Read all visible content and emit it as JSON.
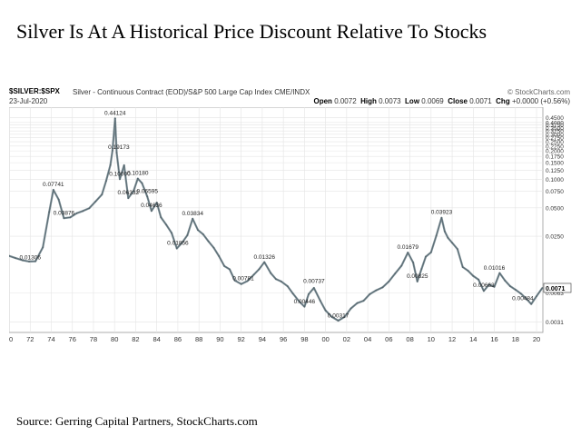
{
  "page": {
    "title": "Silver Is At A Historical Price Discount Relative To Stocks",
    "source": "Source: Gerring Capital Partners, StockCharts.com"
  },
  "header": {
    "symbol": "$SILVER:$SPX",
    "description": "Silver - Continuous Contract (EOD)/S&P 500 Large Cap Index",
    "exchange": "CME/INDX",
    "watermark": "© StockCharts.com",
    "date": "23-Jul-2020",
    "quote": {
      "open_label": "Open",
      "open": "0.0072",
      "high_label": "High",
      "high": "0.0073",
      "low_label": "Low",
      "low": "0.0069",
      "close_label": "Close",
      "close": "0.0071",
      "chg_label": "Chg",
      "chg": "+0.0000 (+0.56%)"
    }
  },
  "chart_data": {
    "type": "line",
    "title": "$SILVER:$SPX",
    "xlabel": "",
    "ylabel": "",
    "y_scale": "log",
    "xlim": [
      1970,
      2020.6
    ],
    "ylim": [
      0.0024,
      0.58
    ],
    "x_tick_labels": [
      "70",
      "72",
      "74",
      "76",
      "78",
      "80",
      "82",
      "84",
      "86",
      "88",
      "90",
      "92",
      "94",
      "96",
      "98",
      "00",
      "02",
      "04",
      "06",
      "08",
      "10",
      "12",
      "14",
      "16",
      "18",
      "20"
    ],
    "x_tick_years": [
      1970,
      1972,
      1974,
      1976,
      1978,
      1980,
      1982,
      1984,
      1986,
      1988,
      1990,
      1992,
      1994,
      1996,
      1998,
      2000,
      2002,
      2004,
      2006,
      2008,
      2010,
      2012,
      2014,
      2016,
      2018,
      2020
    ],
    "y_ticks": [
      {
        "value": 0.45,
        "label": "0.4500"
      },
      {
        "value": 0.4,
        "label": "0.4000"
      },
      {
        "value": 0.375,
        "label": "0.3750"
      },
      {
        "value": 0.35,
        "label": "0.3500"
      },
      {
        "value": 0.325,
        "label": "0.3250"
      },
      {
        "value": 0.3,
        "label": "0.3000"
      },
      {
        "value": 0.275,
        "label": "0.2750"
      },
      {
        "value": 0.25,
        "label": "0.2500"
      },
      {
        "value": 0.225,
        "label": "0.2250"
      },
      {
        "value": 0.2,
        "label": "0.2000"
      },
      {
        "value": 0.175,
        "label": "0.1750"
      },
      {
        "value": 0.15,
        "label": "0.1500"
      },
      {
        "value": 0.125,
        "label": "0.1250"
      },
      {
        "value": 0.1,
        "label": "0.1000"
      },
      {
        "value": 0.075,
        "label": "0.0750"
      },
      {
        "value": 0.05,
        "label": "0.0500"
      },
      {
        "value": 0.025,
        "label": "0.0250"
      },
      {
        "value": 0.0063,
        "label": "0.0063"
      },
      {
        "value": 0.0031,
        "label": "0.0031"
      }
    ],
    "last_value": {
      "value": 0.0071,
      "label": "0.0071"
    },
    "grid": true,
    "legend": "none",
    "series": [
      {
        "x": [
          1970.0,
          1970.6,
          1971.3,
          1971.9,
          1972.5,
          1973.2,
          1973.8,
          1974.2,
          1974.7,
          1975.2,
          1975.8,
          1976.4,
          1977.0,
          1977.6,
          1978.2,
          1978.8,
          1979.2,
          1979.6,
          1979.8,
          1980.05,
          1980.2,
          1980.5,
          1980.9,
          1981.3,
          1981.8,
          1982.2,
          1982.6,
          1983.1,
          1983.5,
          1984.0,
          1984.4,
          1984.9,
          1985.4,
          1985.9,
          1986.4,
          1986.9,
          1987.4,
          1987.9,
          1988.4,
          1988.9,
          1989.4,
          1989.9,
          1990.4,
          1990.9,
          1991.4,
          1992.0,
          1992.6,
          1993.2,
          1993.7,
          1994.2,
          1994.8,
          1995.3,
          1995.8,
          1996.4,
          1996.9,
          1997.5,
          1998.0,
          1998.4,
          1998.9,
          1999.5,
          2000.0,
          2000.6,
          2001.2,
          2001.8,
          2002.4,
          2003.0,
          2003.6,
          2004.2,
          2004.8,
          2005.4,
          2006.0,
          2006.6,
          2007.2,
          2007.8,
          2008.3,
          2008.7,
          2009.1,
          2009.5,
          2010.0,
          2010.5,
          2011.0,
          2011.3,
          2011.6,
          2012.0,
          2012.5,
          2013.0,
          2013.5,
          2014.0,
          2014.5,
          2015.0,
          2015.5,
          2016.0,
          2016.5,
          2017.0,
          2017.5,
          2018.0,
          2018.5,
          2019.0,
          2019.5,
          2020.0,
          2020.55
        ],
        "values": [
          0.0155,
          0.0147,
          0.0139,
          0.0135,
          0.0136,
          0.0191,
          0.0452,
          0.0774,
          0.0612,
          0.0388,
          0.0396,
          0.0438,
          0.0462,
          0.0495,
          0.0584,
          0.0691,
          0.0962,
          0.1417,
          0.2012,
          0.4412,
          0.1917,
          0.1005,
          0.1412,
          0.0633,
          0.0751,
          0.1018,
          0.0912,
          0.0659,
          0.0463,
          0.0567,
          0.0396,
          0.0331,
          0.0271,
          0.0186,
          0.0214,
          0.0256,
          0.0383,
          0.0291,
          0.0262,
          0.0221,
          0.0189,
          0.0154,
          0.0121,
          0.0112,
          0.0085,
          0.0078,
          0.0084,
          0.0098,
          0.0112,
          0.0133,
          0.0102,
          0.0088,
          0.0083,
          0.0074,
          0.0062,
          0.0051,
          0.0045,
          0.0061,
          0.0071,
          0.0052,
          0.0041,
          0.0035,
          0.0032,
          0.0035,
          0.0043,
          0.0049,
          0.0052,
          0.0061,
          0.0067,
          0.0072,
          0.0083,
          0.0101,
          0.0122,
          0.0168,
          0.0132,
          0.0083,
          0.0113,
          0.0152,
          0.0169,
          0.0253,
          0.0392,
          0.0281,
          0.0241,
          0.0213,
          0.0183,
          0.0118,
          0.0108,
          0.0095,
          0.0087,
          0.0066,
          0.0077,
          0.0073,
          0.0102,
          0.0085,
          0.0074,
          0.0068,
          0.0062,
          0.0055,
          0.0048,
          0.0058,
          0.0071
        ]
      }
    ],
    "annotations": [
      {
        "x": 1980.05,
        "y": 0.44124,
        "label": "0.44124"
      },
      {
        "x": 1980.4,
        "y": 0.19173,
        "label": "0.19173"
      },
      {
        "x": 1980.5,
        "y": 0.1,
        "label": "0.10000"
      },
      {
        "x": 1982.2,
        "y": 0.1018,
        "label": "0.10180"
      },
      {
        "x": 1983.1,
        "y": 0.06595,
        "label": "0.06595"
      },
      {
        "x": 1981.3,
        "y": 0.06332,
        "label": "0.06332"
      },
      {
        "x": 1983.5,
        "y": 0.04636,
        "label": "0.04636"
      },
      {
        "x": 1974.2,
        "y": 0.07741,
        "label": "0.07741"
      },
      {
        "x": 1975.2,
        "y": 0.03876,
        "label": "0.03876"
      },
      {
        "x": 1972.0,
        "y": 0.01306,
        "label": "0.01306"
      },
      {
        "x": 1986.0,
        "y": 0.01856,
        "label": "0.01856"
      },
      {
        "x": 1987.4,
        "y": 0.03834,
        "label": "0.03834"
      },
      {
        "x": 1992.2,
        "y": 0.00781,
        "label": "0.00781"
      },
      {
        "x": 1994.2,
        "y": 0.01326,
        "label": "0.01326"
      },
      {
        "x": 1998.0,
        "y": 0.00446,
        "label": "0.00446"
      },
      {
        "x": 1998.9,
        "y": 0.00737,
        "label": "0.00737"
      },
      {
        "x": 2001.2,
        "y": 0.00317,
        "label": "0.00317"
      },
      {
        "x": 2007.8,
        "y": 0.01679,
        "label": "0.01679"
      },
      {
        "x": 2008.7,
        "y": 0.00825,
        "label": "0.00825"
      },
      {
        "x": 2011.0,
        "y": 0.03923,
        "label": "0.03923"
      },
      {
        "x": 2015.0,
        "y": 0.00663,
        "label": "0.00663"
      },
      {
        "x": 2016.0,
        "y": 0.01016,
        "label": "0.01016"
      },
      {
        "x": 2018.7,
        "y": 0.00484,
        "label": "0.00484"
      }
    ]
  }
}
